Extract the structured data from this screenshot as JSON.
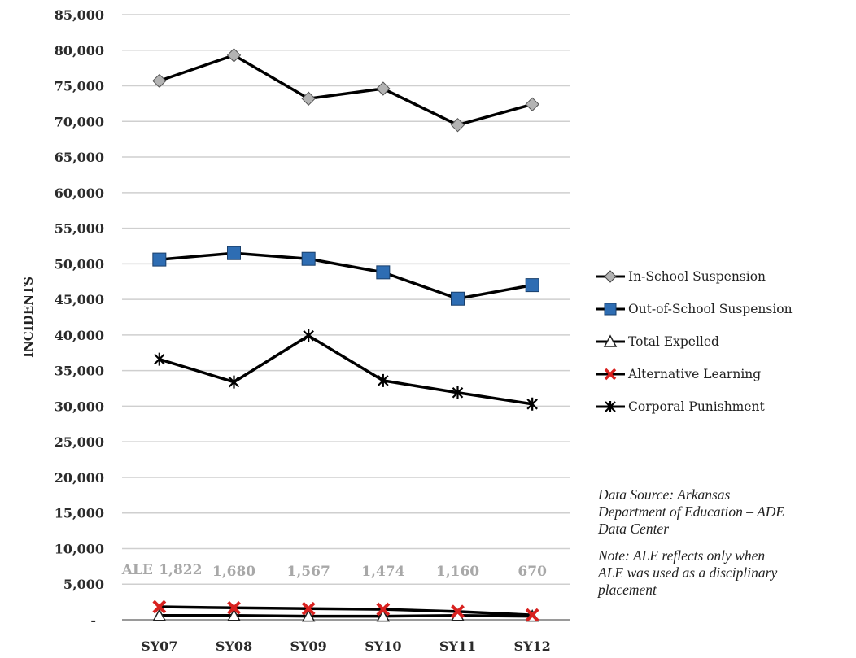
{
  "chart_data": {
    "type": "line",
    "categories": [
      "SY07",
      "SY08",
      "SY09",
      "SY10",
      "SY11",
      "SY12"
    ],
    "ylabel": "INCIDENTS",
    "ylim": [
      0,
      85000
    ],
    "yticks": [
      "-",
      "5,000",
      "10,000",
      "15,000",
      "20,000",
      "25,000",
      "30,000",
      "35,000",
      "40,000",
      "45,000",
      "50,000",
      "55,000",
      "60,000",
      "65,000",
      "70,000",
      "75,000",
      "80,000",
      "85,000"
    ],
    "grid": true,
    "legend_position": "right",
    "series": [
      {
        "name": "In-School Suspension",
        "marker": "diamond",
        "color": "#000000",
        "marker_color": "#b3b3b3",
        "values": [
          75700,
          79300,
          73200,
          74600,
          69500,
          72400
        ]
      },
      {
        "name": "Out-of-School Suspension",
        "marker": "square",
        "color": "#000000",
        "marker_color": "#2e6db3",
        "values": [
          50600,
          51500,
          50700,
          48800,
          45100,
          47000
        ]
      },
      {
        "name": "Total Expelled",
        "marker": "triangle",
        "color": "#000000",
        "marker_color": "#ffffff",
        "values": [
          600,
          600,
          500,
          500,
          600,
          500
        ]
      },
      {
        "name": "Alternative Learning",
        "marker": "x",
        "color": "#000000",
        "marker_color": "#d8211f",
        "values": [
          1822,
          1680,
          1567,
          1474,
          1160,
          670
        ]
      },
      {
        "name": "Corporal Punishment",
        "marker": "asterisk",
        "color": "#000000",
        "marker_color": "#000000",
        "values": [
          36600,
          33400,
          39900,
          33600,
          31900,
          30300
        ]
      }
    ],
    "annotations": {
      "ale_prefix": "ALE",
      "ale_labels": [
        "1,822",
        "1,680",
        "1,567",
        "1,474",
        "1,160",
        "670"
      ]
    }
  },
  "notes": {
    "source": "Data Source: Arkansas Department of Education – ADE Data Center",
    "ale_note": "Note: ALE reflects only when ALE was used as a disciplinary placement"
  }
}
